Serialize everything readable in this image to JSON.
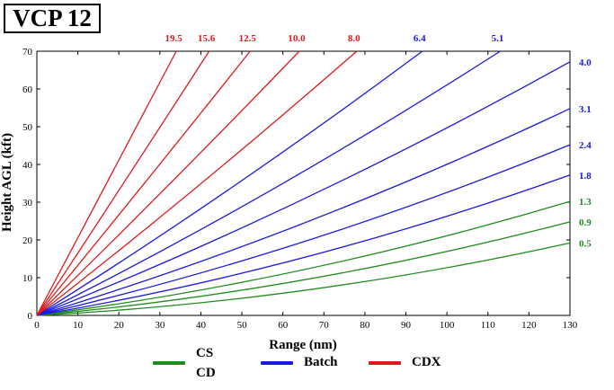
{
  "title": "VCP 12",
  "chart_data": {
    "type": "line",
    "xlabel": "Range (nm)",
    "ylabel": "Height AGL (kft)",
    "xlim": [
      0,
      130
    ],
    "ylim": [
      0,
      70
    ],
    "x_ticks": [
      0,
      10,
      20,
      30,
      40,
      50,
      60,
      70,
      80,
      90,
      100,
      110,
      120,
      130
    ],
    "y_ticks": [
      0,
      10,
      20,
      30,
      40,
      50,
      60,
      70
    ],
    "grid": false,
    "series": [
      {
        "name": "0.5",
        "group": "CS/CD",
        "color": "#1f8c1f",
        "points": [
          [
            0,
            0
          ],
          [
            65,
            6.6
          ],
          [
            130,
            19.2
          ]
        ]
      },
      {
        "name": "0.9",
        "group": "CS/CD",
        "color": "#1f8c1f",
        "points": [
          [
            0,
            0
          ],
          [
            65,
            9.4
          ],
          [
            130,
            24.8
          ]
        ]
      },
      {
        "name": "1.3",
        "group": "CS/CD",
        "color": "#1f8c1f",
        "points": [
          [
            0,
            0
          ],
          [
            65,
            12.1
          ],
          [
            130,
            30.2
          ]
        ]
      },
      {
        "name": "1.8",
        "group": "Batch",
        "color": "#1a1ae0",
        "points": [
          [
            0,
            0
          ],
          [
            65,
            15.3
          ],
          [
            130,
            37.2
          ]
        ]
      },
      {
        "name": "2.4",
        "group": "Batch",
        "color": "#1a1ae0",
        "points": [
          [
            0,
            0
          ],
          [
            65,
            19.5
          ],
          [
            130,
            45.2
          ]
        ]
      },
      {
        "name": "3.1",
        "group": "Batch",
        "color": "#1a1ae0",
        "points": [
          [
            0,
            0
          ],
          [
            65,
            24.4
          ],
          [
            130,
            54.8
          ]
        ]
      },
      {
        "name": "4.0",
        "group": "Batch",
        "color": "#1a1ae0",
        "points": [
          [
            0,
            0
          ],
          [
            65,
            30.8
          ],
          [
            130,
            67.2
          ]
        ]
      },
      {
        "name": "5.1",
        "group": "Batch",
        "color": "#1a1ae0",
        "points": [
          [
            0,
            0
          ],
          [
            56,
            32.5
          ],
          [
            113,
            70
          ]
        ]
      },
      {
        "name": "6.4",
        "group": "Batch",
        "color": "#1a1ae0",
        "points": [
          [
            0,
            0
          ],
          [
            47,
            33.5
          ],
          [
            94,
            70
          ]
        ]
      },
      {
        "name": "8.0",
        "group": "CDX",
        "color": "#e01a1a",
        "points": [
          [
            0,
            0
          ],
          [
            39,
            34
          ],
          [
            78,
            70
          ]
        ]
      },
      {
        "name": "10.0",
        "group": "CDX",
        "color": "#e01a1a",
        "points": [
          [
            0,
            0
          ],
          [
            32,
            34.4
          ],
          [
            64,
            70
          ]
        ]
      },
      {
        "name": "12.5",
        "group": "CDX",
        "color": "#e01a1a",
        "points": [
          [
            0,
            0
          ],
          [
            26,
            34.7
          ],
          [
            52,
            70
          ]
        ]
      },
      {
        "name": "15.6",
        "group": "CDX",
        "color": "#e01a1a",
        "points": [
          [
            0,
            0
          ],
          [
            21,
            34.8
          ],
          [
            42,
            70
          ]
        ]
      },
      {
        "name": "19.5",
        "group": "CDX",
        "color": "#e01a1a",
        "points": [
          [
            0,
            0
          ],
          [
            17,
            34.9
          ],
          [
            34,
            70
          ]
        ]
      }
    ],
    "legend": {
      "placement": "bottom",
      "items": [
        {
          "labels": [
            "CS",
            "CD"
          ],
          "color": "#1f8c1f"
        },
        {
          "labels": [
            "Batch"
          ],
          "color": "#1a1ae0"
        },
        {
          "labels": [
            "CDX"
          ],
          "color": "#e01a1a"
        }
      ]
    }
  }
}
